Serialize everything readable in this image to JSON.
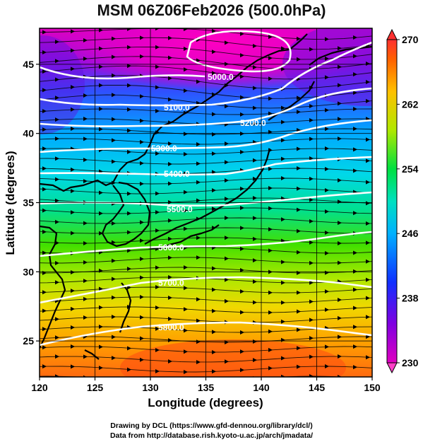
{
  "title": "MSM 06Z06Feb2026 (500.0hPa)",
  "credits": {
    "line1": "Drawing by DCL (https://www.gfd-dennou.org/library/dcl/)",
    "line2": "Data from http://database.rish.kyoto-u.ac.jp/arch/jmadata/"
  },
  "map": {
    "xlabel": "Longitude (degrees)",
    "ylabel": "Latitude  (degrees)",
    "xlim": [
      120,
      150
    ],
    "ylim": [
      22.4,
      47.6
    ],
    "x_ticks": [
      "120",
      "125",
      "130",
      "135",
      "140",
      "145",
      "150"
    ],
    "y_ticks": [
      "25",
      "30",
      "35",
      "40",
      "45"
    ],
    "grid": true,
    "shading_variable": "temperature (K)",
    "contours": [
      {
        "label": "5000.0",
        "value": 5000
      },
      {
        "label": "5100.0",
        "value": 5100
      },
      {
        "label": "5200.0",
        "value": 5200
      },
      {
        "label": "5300.0",
        "value": 5300
      },
      {
        "label": "5400.0",
        "value": 5400
      },
      {
        "label": "5500.0",
        "value": 5500
      },
      {
        "label": "5600.0",
        "value": 5600
      },
      {
        "label": "5700.0",
        "value": 5700
      },
      {
        "label": "5800.0",
        "value": 5800
      }
    ]
  },
  "colorbar": {
    "min": 230,
    "max": 270,
    "tick_labels": [
      "270",
      "262",
      "254",
      "246",
      "238",
      "230"
    ],
    "colors": [
      "#d400c8",
      "#6a00e0",
      "#1030ff",
      "#00a8ff",
      "#00e8d8",
      "#00e070",
      "#30e000",
      "#a0e800",
      "#f0e000",
      "#ffa000",
      "#ff5000",
      "#ff2020"
    ]
  }
}
